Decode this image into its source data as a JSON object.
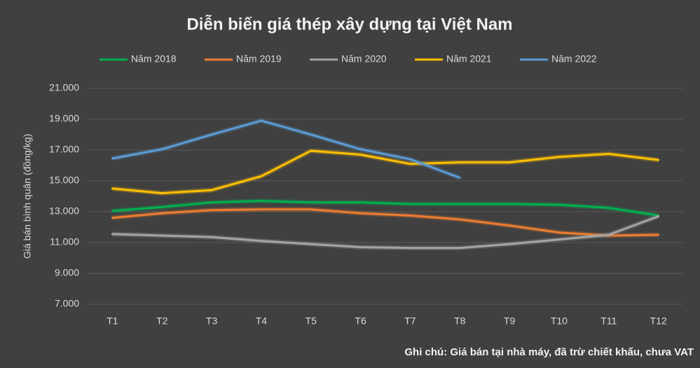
{
  "chart_data": {
    "type": "line",
    "title": "Diễn biến giá thép xây dựng tại Việt Nam",
    "y_label": "Giá bán bình quân (đồng/kg)",
    "note": "Ghi chú: Giá bán tại nhà máy, đã trừ chiết khấu, chưa VAT",
    "categories": [
      "T1",
      "T2",
      "T3",
      "T4",
      "T5",
      "T6",
      "T7",
      "T8",
      "T9",
      "T10",
      "T11",
      "T12"
    ],
    "series": [
      {
        "name": "Năm 2018",
        "color": "#00b050",
        "values": [
          13050,
          13300,
          13600,
          13700,
          13600,
          13600,
          13500,
          13500,
          13500,
          13450,
          13250,
          12750
        ]
      },
      {
        "name": "Năm 2019",
        "color": "#ed7d31",
        "values": [
          12600,
          12900,
          13100,
          13150,
          13150,
          12900,
          12750,
          12500,
          12100,
          11650,
          11450,
          11500
        ]
      },
      {
        "name": "Năm 2020",
        "color": "#a5a5a5",
        "values": [
          11550,
          11450,
          11350,
          11100,
          10900,
          10700,
          10650,
          10650,
          10900,
          11200,
          11500,
          12700
        ]
      },
      {
        "name": "Năm 2021",
        "color": "#ffc000",
        "values": [
          14500,
          14200,
          14400,
          15300,
          16950,
          16700,
          16100,
          16200,
          16200,
          16550,
          16750,
          16350
        ]
      },
      {
        "name": "Năm 2022",
        "color": "#5b9bd5",
        "values": [
          16450,
          17050,
          18000,
          18900,
          18000,
          17050,
          16400,
          15200,
          null,
          null,
          null,
          null
        ]
      }
    ],
    "ylim": [
      7000,
      21000
    ],
    "yticks": [
      {
        "value": 7000,
        "label": "7.000"
      },
      {
        "value": 9000,
        "label": "9.000"
      },
      {
        "value": 11000,
        "label": "11.000"
      },
      {
        "value": 13000,
        "label": "13.000"
      },
      {
        "value": 15000,
        "label": "15.000"
      },
      {
        "value": 17000,
        "label": "17.000"
      },
      {
        "value": 19000,
        "label": "19.000"
      },
      {
        "value": 21000,
        "label": "21.000"
      }
    ],
    "grid": true,
    "legend": "top"
  }
}
